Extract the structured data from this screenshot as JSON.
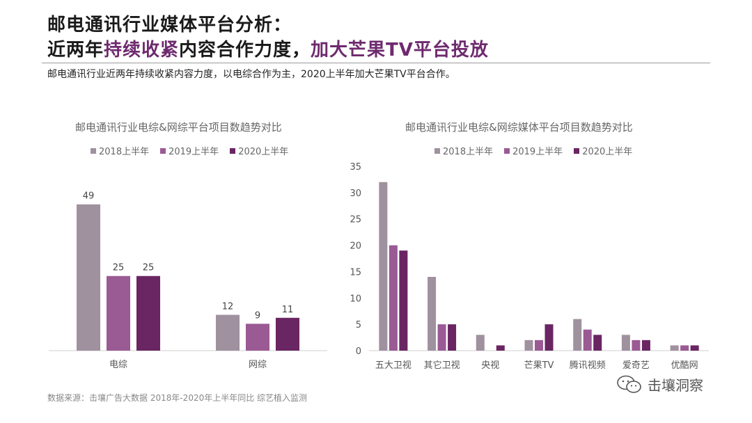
{
  "header": {
    "line1": "邮电通讯行业媒体平台分析：",
    "line2_a": "近两年",
    "line2_b": "持续收紧",
    "line2_c": "内容合作力度，",
    "line2_d": "加大芒果TV平台投放",
    "subtitle": "邮电通讯行业近两年持续收紧内容力度，以电综合作为主，2020上半年加大芒果TV平台合作。"
  },
  "colors": {
    "s2018": "#a0919f",
    "s2019": "#9a5a94",
    "s2020": "#6a2563",
    "highlight": "#6e2a6e"
  },
  "legend": [
    "2018上半年",
    "2019上半年",
    "2020上半年"
  ],
  "chart_data": [
    {
      "type": "bar",
      "title": "邮电通讯行业电综&网综平台项目数趋势对比",
      "categories": [
        "电综",
        "网综"
      ],
      "series": [
        {
          "name": "2018上半年",
          "values": [
            49,
            12
          ]
        },
        {
          "name": "2019上半年",
          "values": [
            25,
            9
          ]
        },
        {
          "name": "2020上半年",
          "values": [
            25,
            11
          ]
        }
      ],
      "ylim": [
        0,
        55
      ],
      "grid": false,
      "legend": "top"
    },
    {
      "type": "bar",
      "title": "邮电通讯行业电综&网综媒体平台项目数趋势对比",
      "categories": [
        "五大卫视",
        "其它卫视",
        "央视",
        "芒果TV",
        "腾讯视频",
        "爱奇艺",
        "优酷网"
      ],
      "series": [
        {
          "name": "2018上半年",
          "values": [
            32,
            14,
            3,
            2,
            6,
            3,
            1
          ]
        },
        {
          "name": "2019上半年",
          "values": [
            20,
            5,
            0,
            2,
            4,
            2,
            1
          ]
        },
        {
          "name": "2020上半年",
          "values": [
            19,
            5,
            1,
            5,
            3,
            2,
            1
          ]
        }
      ],
      "yticks": [
        0,
        5,
        10,
        15,
        20,
        25,
        30,
        35
      ],
      "ylim": [
        0,
        35
      ],
      "grid": false,
      "legend": "top"
    }
  ],
  "footer": {
    "source": "数据来源：击壤广告大数据 2018年-2020年上半年同比 综艺植入监测",
    "brand": "击壤洞察"
  }
}
